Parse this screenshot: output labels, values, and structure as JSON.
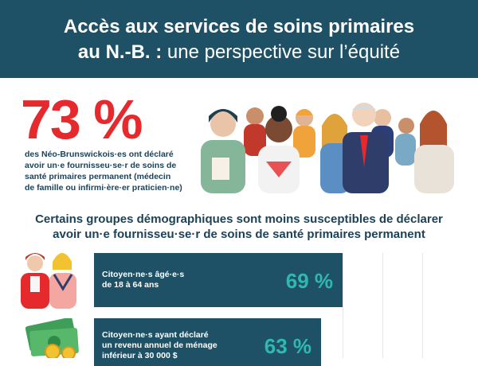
{
  "header": {
    "line1": "Accès aux services de soins primaires",
    "line2_bold": "au N.-B. :",
    "line2_rest": " une perspective sur l’équité"
  },
  "stat": {
    "value": "73 %",
    "desc_lines": [
      "des Néo-Brunswickois·es ont déclaré",
      "avoir un·e fournisseu·se·r de soins de",
      "santé primaires permanent (médecin",
      "de famille ou infirmi·ère·er praticien·ne)"
    ]
  },
  "section": {
    "title_lines": [
      "Certains groupes démographiques sont moins susceptibles de déclarer",
      "avoir un·e fournisseu·se·r de soins de santé primaires permanent"
    ]
  },
  "chart_data": {
    "type": "bar",
    "categories": [
      "Citoyen·ne·s âgé·e·s de 18 à 64 ans",
      "Citoyen·ne·s ayant déclaré un revenu annuel de ménage inférieur à 30 000 $"
    ],
    "values": [
      69,
      63
    ],
    "value_labels": [
      "69 %",
      "63 %"
    ],
    "bar_label_lines": [
      [
        "Citoyen·ne·s âgé·e·s",
        "de 18 à 64 ans"
      ],
      [
        "Citoyen·ne·s ayant déclaré",
        "un revenu annuel de ménage",
        "inférieur à 30 000 $"
      ]
    ],
    "colors": {
      "bar": "#1e5166",
      "value": "#2fb8b3"
    }
  },
  "icons": [
    "crowd-illustration",
    "young-people-icon",
    "money-icon"
  ],
  "colors": {
    "header": "#1e5166",
    "accent": "#e5292d",
    "text": "#1d4257"
  }
}
